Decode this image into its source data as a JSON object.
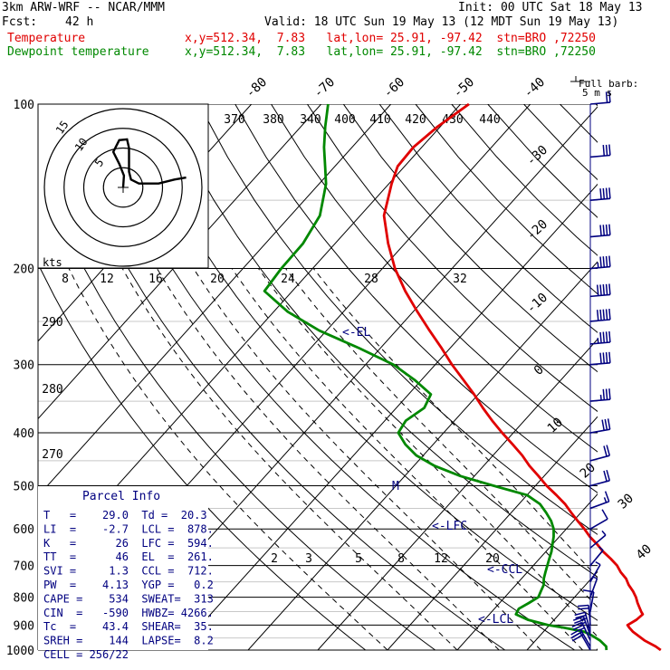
{
  "header": {
    "model": "3km ARW-WRF -- NCAR/MMM",
    "init": "Init: 00 UTC Sat 18 May 13",
    "fcst_label": "Fcst:",
    "fcst_value": "42 h",
    "valid": "Valid: 18 UTC Sun 19 May 13 (12 MDT Sun 19 May 13)",
    "temp_label": "Temperature",
    "temp_loc": "x,y=512.34,  7.83   lat,lon= 25.91, -97.42  stn=BRO ,72250",
    "dew_label": "Dewpoint temperature",
    "dew_loc": "x,y=512.34,  7.83   lat,lon= 25.91, -97.42  stn=BRO ,72250"
  },
  "colors": {
    "temperature": "#e00000",
    "dewpoint": "#008800",
    "annotation": "#000080",
    "axes": "#000000"
  },
  "barb_legend": {
    "line1": "Full barb:",
    "line2": "5 m s"
  },
  "hodograph": {
    "units": "kts",
    "ring_labels": [
      "15",
      "10",
      "5"
    ],
    "path_kts": [
      [
        0,
        0
      ],
      [
        0.2,
        3
      ],
      [
        -1,
        6
      ],
      [
        -2.5,
        9
      ],
      [
        -1,
        12
      ],
      [
        1,
        12.2
      ],
      [
        1.5,
        10
      ],
      [
        1.5,
        4
      ],
      [
        2,
        2
      ],
      [
        4,
        1
      ],
      [
        9,
        1
      ],
      [
        13,
        2
      ],
      [
        16,
        2.5
      ]
    ]
  },
  "parcel_info": {
    "title": "Parcel Info",
    "rows": [
      "T   =    29.0  Td =  20.3",
      "LI  =    -2.7  LCL =  878.",
      "K   =      26  LFC =  594.",
      "TT  =      46  EL  =  261.",
      "SVI =     1.3  CCL =  712.",
      "PW  =    4.13  YGP =   0.2",
      "CAPE =    534  SWEAT=  313",
      "CIN  =   -590  HWBZ= 4266.",
      "Tc  =    43.4  SHEAR=  35.",
      "SREH =    144  LAPSE=  8.2",
      "CELL = 256/22"
    ]
  },
  "level_labels": {
    "el": "<-EL",
    "lfc": "<-LFC",
    "ccl": "<-CCL",
    "lcl": "<-LCL",
    "m": "M"
  },
  "chart_data": {
    "type": "line",
    "title": "",
    "xlabel": "",
    "ylabel": "",
    "pressure_ticks": [
      100,
      200,
      300,
      400,
      500,
      600,
      700,
      800,
      900,
      1000
    ],
    "isotherm_labels": [
      "-80",
      "-70",
      "-60",
      "-50",
      "-40",
      "-30",
      "-20",
      "-10",
      "0",
      "10",
      "20",
      "30",
      "40"
    ],
    "theta_labels": [
      "370",
      "380",
      "340",
      "400",
      "410",
      "420",
      "430",
      "440"
    ],
    "theta_e_labels": [
      "290",
      "280",
      "270"
    ],
    "mixing_ratio_upper_labels": [
      "8",
      "12",
      "16",
      "20",
      "24",
      "28",
      "32"
    ],
    "mixing_ratio_lower_labels": [
      "2",
      "3",
      "5",
      "8",
      "12",
      "20"
    ],
    "series": [
      {
        "name": "Temperature",
        "pressure": [
          1000,
          985,
          960,
          940,
          925,
          910,
          900,
          880,
          860,
          850,
          820,
          800,
          780,
          760,
          740,
          720,
          700,
          680,
          660,
          640,
          620,
          600,
          580,
          560,
          540,
          520,
          500,
          480,
          460,
          440,
          420,
          400,
          380,
          360,
          340,
          320,
          300,
          280,
          260,
          240,
          220,
          200,
          180,
          160,
          140,
          130,
          120,
          110,
          100
        ],
        "temperature": [
          29.2,
          28.0,
          25.6,
          24.0,
          22.8,
          21.8,
          21.2,
          21.8,
          22.0,
          21.4,
          19.8,
          18.8,
          17.6,
          16.2,
          15.0,
          13.4,
          12.0,
          10.2,
          8.2,
          6.4,
          4.4,
          2.6,
          0.6,
          -1.4,
          -3.4,
          -5.8,
          -8.4,
          -10.8,
          -13.4,
          -15.8,
          -18.6,
          -21.6,
          -24.6,
          -27.6,
          -30.6,
          -34.0,
          -37.6,
          -41.2,
          -45.2,
          -49.4,
          -53.8,
          -58.2,
          -62.4,
          -66.6,
          -69.6,
          -71.0,
          -71.2,
          -70.4,
          -68.8
        ]
      },
      {
        "name": "Dewpoint temperature",
        "pressure": [
          1000,
          985,
          960,
          940,
          925,
          910,
          900,
          880,
          860,
          840,
          820,
          800,
          780,
          760,
          740,
          720,
          700,
          680,
          660,
          640,
          620,
          600,
          580,
          560,
          540,
          520,
          500,
          480,
          460,
          440,
          420,
          400,
          380,
          360,
          340,
          320,
          300,
          280,
          260,
          240,
          220,
          200,
          180,
          160,
          140,
          130,
          120,
          110,
          100
        ],
        "temperature": [
          21.4,
          20.9,
          19.2,
          17.4,
          15.8,
          12.4,
          9.8,
          6.2,
          3.8,
          3.5,
          4.2,
          4.8,
          4.4,
          4.0,
          3.2,
          2.6,
          2.0,
          1.4,
          0.8,
          0.0,
          -0.8,
          -1.8,
          -3.2,
          -5.0,
          -7.0,
          -10.0,
          -16.0,
          -22.0,
          -27.0,
          -31.0,
          -34.0,
          -36.5,
          -37.0,
          -36.0,
          -36.8,
          -41.0,
          -46.0,
          -53.0,
          -61.0,
          -68.0,
          -74.0,
          -74.5,
          -74.6,
          -75.8,
          -79.0,
          -81.4,
          -84.0,
          -86.5,
          -89.0
        ]
      }
    ],
    "wind_barbs": [
      {
        "pressure": 1000,
        "speed_ms": 12,
        "dir": 150
      },
      {
        "pressure": 985,
        "speed_ms": 14,
        "dir": 150
      },
      {
        "pressure": 960,
        "speed_ms": 14,
        "dir": 155
      },
      {
        "pressure": 940,
        "speed_ms": 14,
        "dir": 160
      },
      {
        "pressure": 925,
        "speed_ms": 13,
        "dir": 165
      },
      {
        "pressure": 900,
        "speed_ms": 10,
        "dir": 175
      },
      {
        "pressure": 850,
        "speed_ms": 6,
        "dir": 190
      },
      {
        "pressure": 800,
        "speed_ms": 4,
        "dir": 200
      },
      {
        "pressure": 750,
        "speed_ms": 3,
        "dir": 210
      },
      {
        "pressure": 700,
        "speed_ms": 3,
        "dir": 220
      },
      {
        "pressure": 650,
        "speed_ms": 4,
        "dir": 230
      },
      {
        "pressure": 600,
        "speed_ms": 6,
        "dir": 240
      },
      {
        "pressure": 550,
        "speed_ms": 8,
        "dir": 250
      },
      {
        "pressure": 500,
        "speed_ms": 10,
        "dir": 255
      },
      {
        "pressure": 450,
        "speed_ms": 12,
        "dir": 255
      },
      {
        "pressure": 400,
        "speed_ms": 15,
        "dir": 260
      },
      {
        "pressure": 350,
        "speed_ms": 18,
        "dir": 265
      },
      {
        "pressure": 300,
        "speed_ms": 22,
        "dir": 265
      },
      {
        "pressure": 275,
        "speed_ms": 24,
        "dir": 265
      },
      {
        "pressure": 250,
        "speed_ms": 25,
        "dir": 265
      },
      {
        "pressure": 225,
        "speed_ms": 25,
        "dir": 265
      },
      {
        "pressure": 200,
        "speed_ms": 24,
        "dir": 265
      },
      {
        "pressure": 175,
        "speed_ms": 22,
        "dir": 265
      },
      {
        "pressure": 150,
        "speed_ms": 20,
        "dir": 265
      },
      {
        "pressure": 125,
        "speed_ms": 15,
        "dir": 265
      },
      {
        "pressure": 100,
        "speed_ms": 10,
        "dir": 265
      }
    ]
  }
}
